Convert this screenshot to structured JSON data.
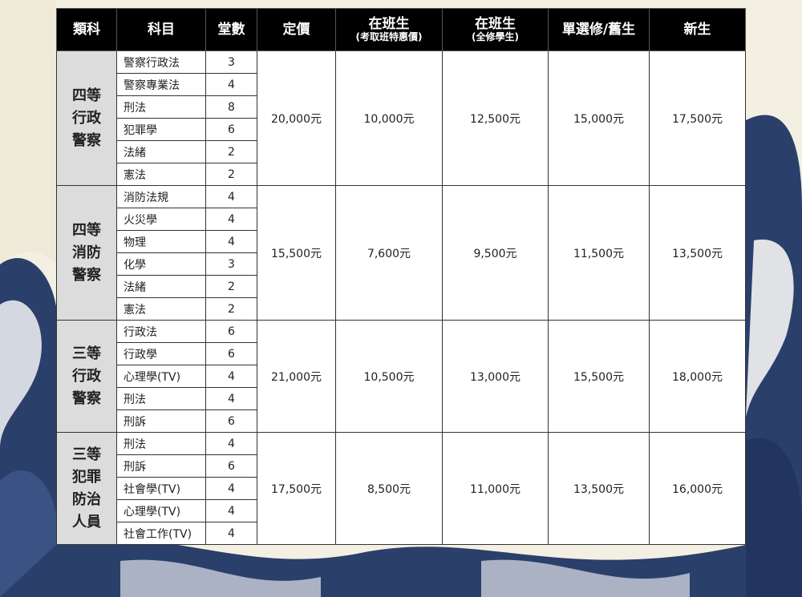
{
  "header": {
    "category": "類科",
    "subject": "科目",
    "hours": "堂數",
    "list_price": "定價",
    "current_special": {
      "title": "在班生",
      "sub": "(考取班特惠價)"
    },
    "current_full": {
      "title": "在班生",
      "sub": "(全修學生)"
    },
    "single_old": "單選修/舊生",
    "new_student": "新生"
  },
  "groups": [
    {
      "category": [
        "四等",
        "行政",
        "警察"
      ],
      "subjects": [
        [
          "警察行政法",
          "3"
        ],
        [
          "警察專業法",
          "4"
        ],
        [
          "刑法",
          "8"
        ],
        [
          "犯罪學",
          "6"
        ],
        [
          "法緒",
          "2"
        ],
        [
          "憲法",
          "2"
        ]
      ],
      "prices": [
        "20,000元",
        "10,000元",
        "12,500元",
        "15,000元",
        "17,500元"
      ]
    },
    {
      "category": [
        "四等",
        "消防",
        "警察"
      ],
      "subjects": [
        [
          "消防法規",
          "4"
        ],
        [
          "火災學",
          "4"
        ],
        [
          "物理",
          "4"
        ],
        [
          "化學",
          "3"
        ],
        [
          "法緒",
          "2"
        ],
        [
          "憲法",
          "2"
        ]
      ],
      "prices": [
        "15,500元",
        "7,600元",
        "9,500元",
        "11,500元",
        "13,500元"
      ]
    },
    {
      "category": [
        "三等",
        "行政",
        "警察"
      ],
      "subjects": [
        [
          "行政法",
          "6"
        ],
        [
          "行政學",
          "6"
        ],
        [
          "心理學(TV)",
          "4"
        ],
        [
          "刑法",
          "4"
        ],
        [
          "刑訴",
          "6"
        ]
      ],
      "prices": [
        "21,000元",
        "10,500元",
        "13,000元",
        "15,500元",
        "18,000元"
      ]
    },
    {
      "category": [
        "三等",
        "犯罪",
        "防治",
        "人員"
      ],
      "subjects": [
        [
          "刑法",
          "4"
        ],
        [
          "刑訴",
          "6"
        ],
        [
          "社會學(TV)",
          "4"
        ],
        [
          "心理學(TV)",
          "4"
        ],
        [
          "社會工作(TV)",
          "4"
        ]
      ],
      "prices": [
        "17,500元",
        "8,500元",
        "11,000元",
        "13,500元",
        "16,000元"
      ]
    }
  ],
  "colors": {
    "wave": "#2b3f6b",
    "background": "#f3efe3",
    "header_bg": "#000000",
    "category_bg": "#dcdcdc"
  }
}
